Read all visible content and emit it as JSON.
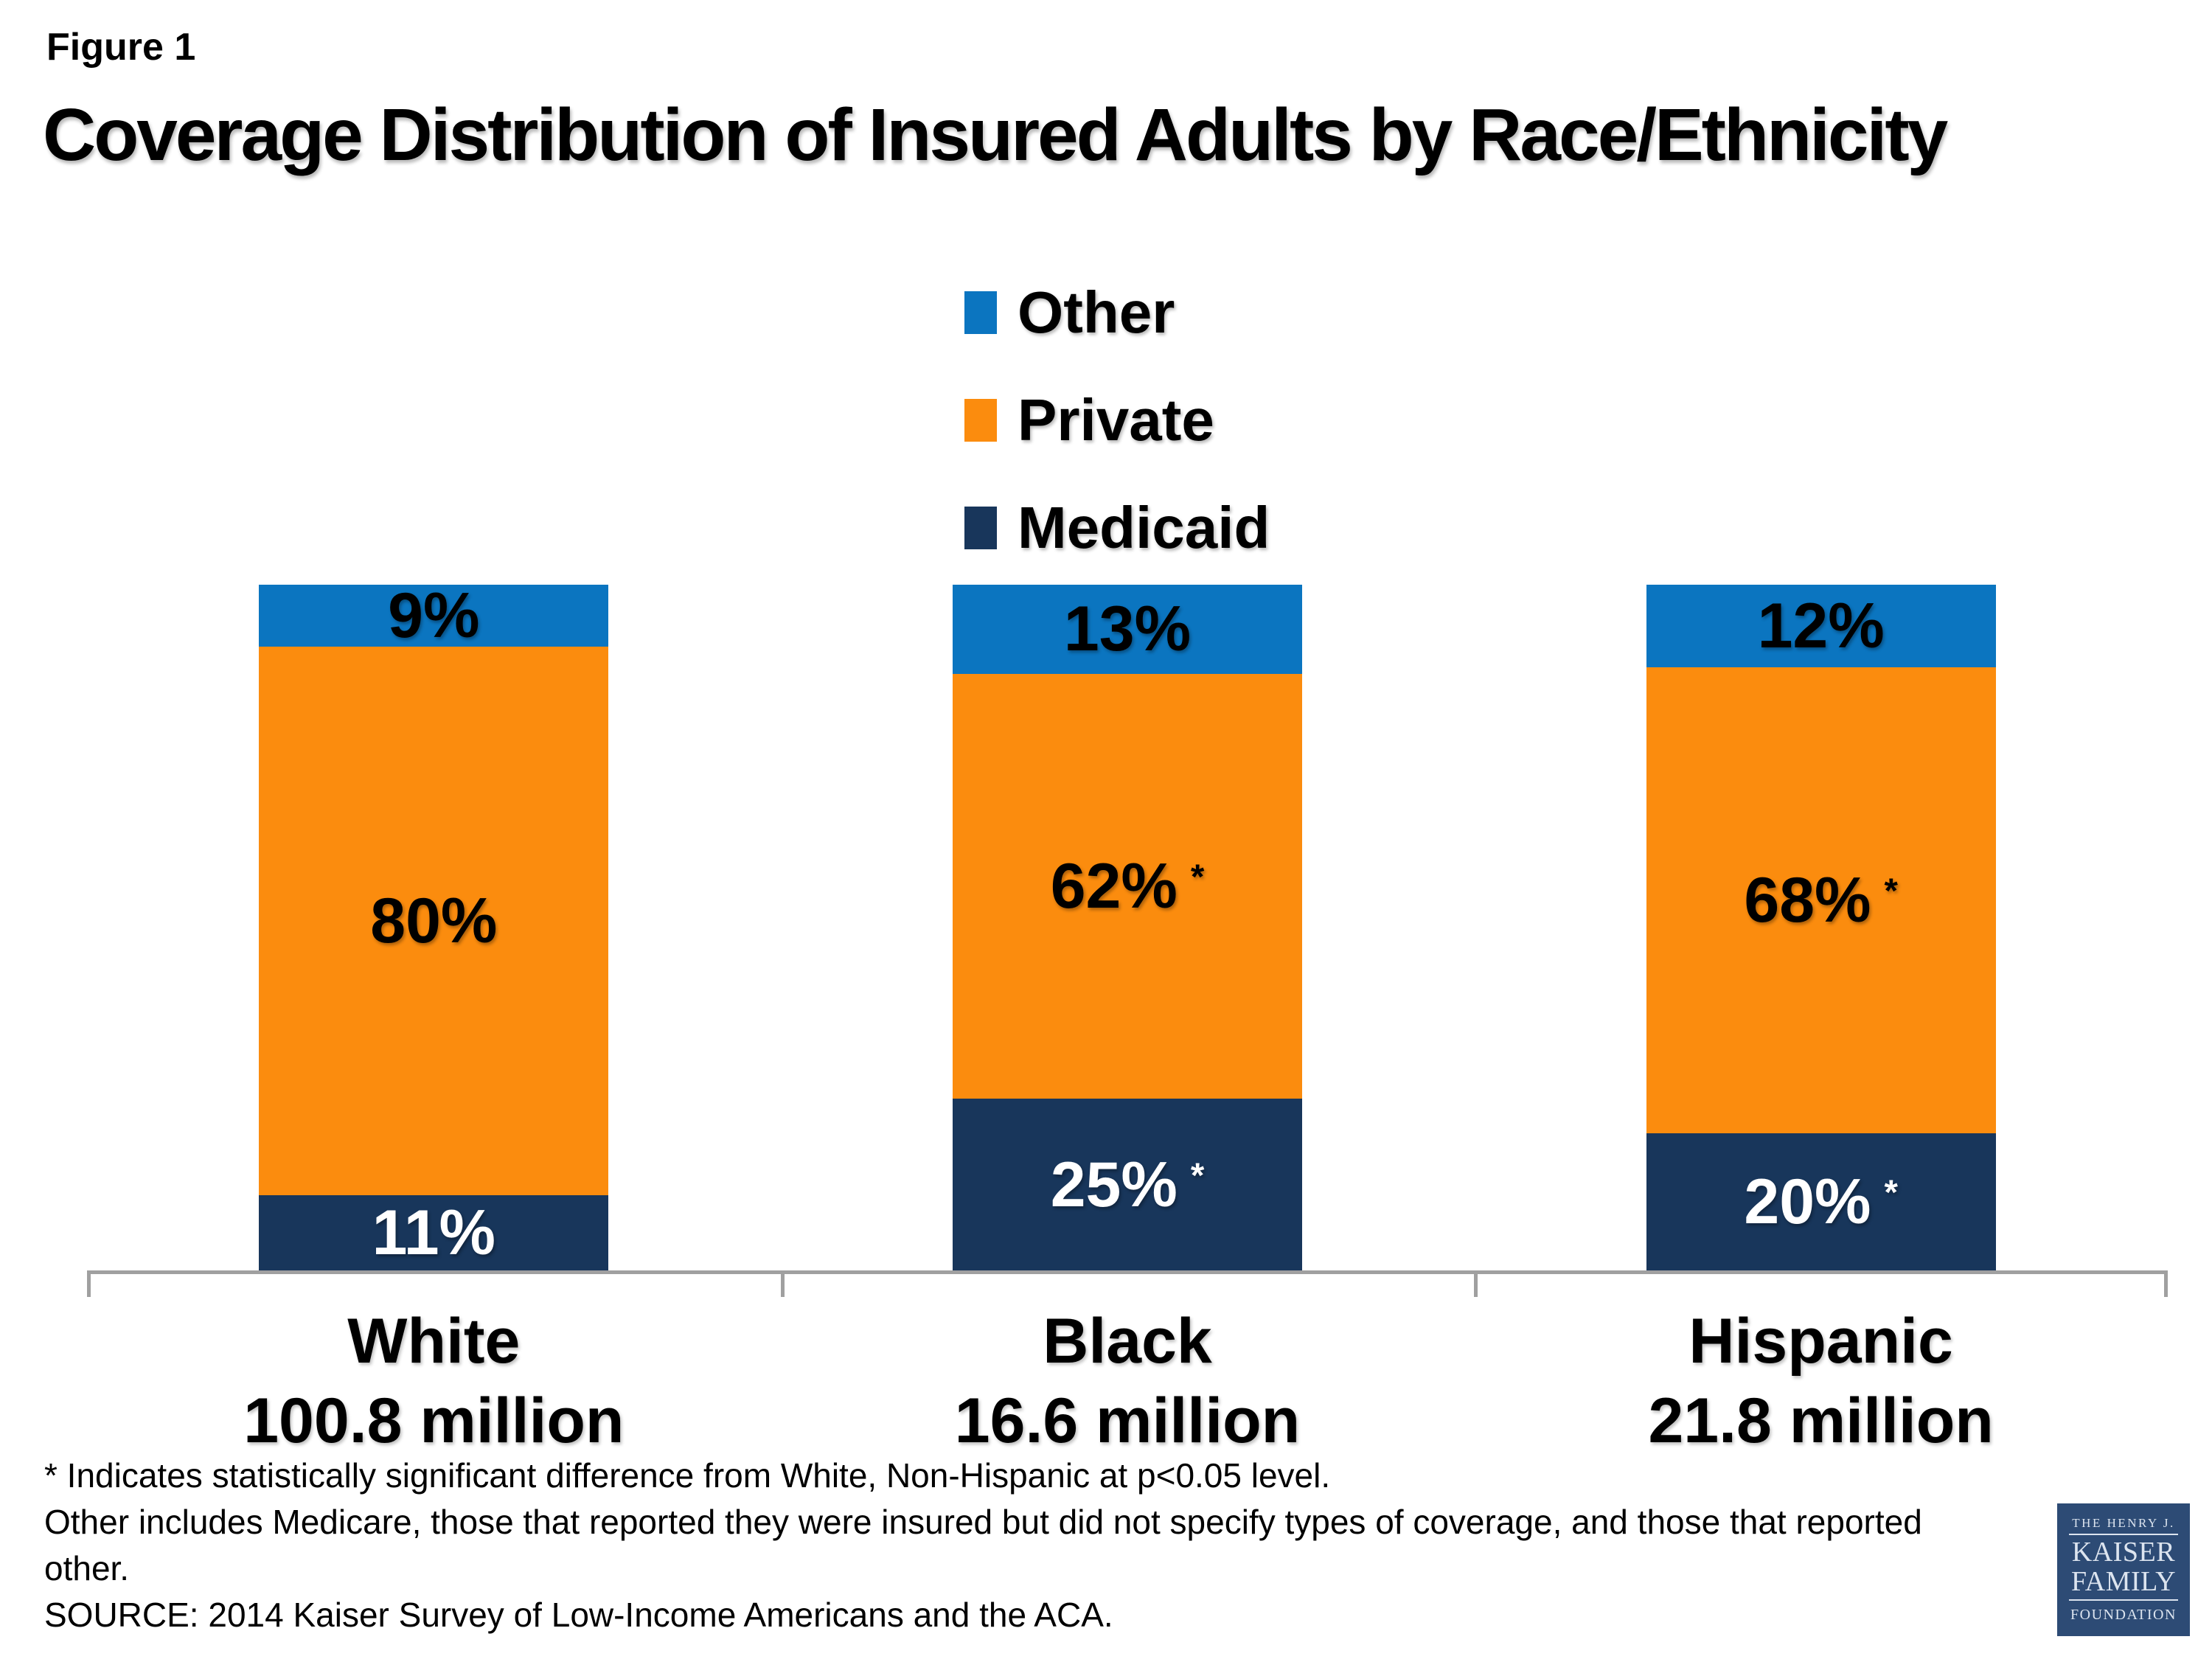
{
  "figure_label": "Figure 1",
  "title": "Coverage Distribution of Insured Adults by Race/Ethnicity",
  "colors": {
    "other": "#0B75C0",
    "private": "#FB8C0E",
    "medicaid": "#18365B",
    "axis": "#A0A0A0",
    "black_text": "#000000",
    "white_text": "#FFFFFF",
    "logo_bg": "#2D4B75",
    "logo_text": "#DCE4EF"
  },
  "legend": {
    "items": [
      {
        "label": "Other",
        "color_key": "other"
      },
      {
        "label": "Private",
        "color_key": "private"
      },
      {
        "label": "Medicaid",
        "color_key": "medicaid"
      }
    ]
  },
  "chart_data": {
    "type": "bar",
    "stacked": true,
    "categories": [
      "White",
      "Black",
      "Hispanic"
    ],
    "category_sublabels": [
      "100.8 million",
      "16.6 million",
      "21.8 million"
    ],
    "series": [
      {
        "name": "Other",
        "color_key": "other",
        "values": [
          9,
          13,
          12
        ],
        "significant": [
          false,
          false,
          false
        ],
        "label_color": "black_text"
      },
      {
        "name": "Private",
        "color_key": "private",
        "values": [
          80,
          62,
          68
        ],
        "significant": [
          false,
          true,
          true
        ],
        "label_color": "black_text"
      },
      {
        "name": "Medicaid",
        "color_key": "medicaid",
        "values": [
          11,
          25,
          20
        ],
        "significant": [
          false,
          true,
          true
        ],
        "label_color": "white_text"
      }
    ],
    "stack_order_top_to_bottom": [
      "Other",
      "Private",
      "Medicaid"
    ],
    "value_suffix": "%",
    "significance_marker": "*",
    "ylim": [
      0,
      100
    ],
    "grid": false,
    "legend_position": "top-center",
    "axis_ticks_x": 4
  },
  "footnotes": {
    "lines": [
      "* Indicates statistically significant difference from White, Non-Hispanic at p<0.05 level.",
      "Other includes Medicare, those that reported they were insured but did not specify types of coverage, and those that reported",
      "other.",
      "SOURCE: 2014 Kaiser Survey of Low-Income Americans and the ACA."
    ]
  },
  "logo": {
    "line1": "THE HENRY J.",
    "line2": "KAISER",
    "line3": "FAMILY",
    "line4": "FOUNDATION"
  }
}
